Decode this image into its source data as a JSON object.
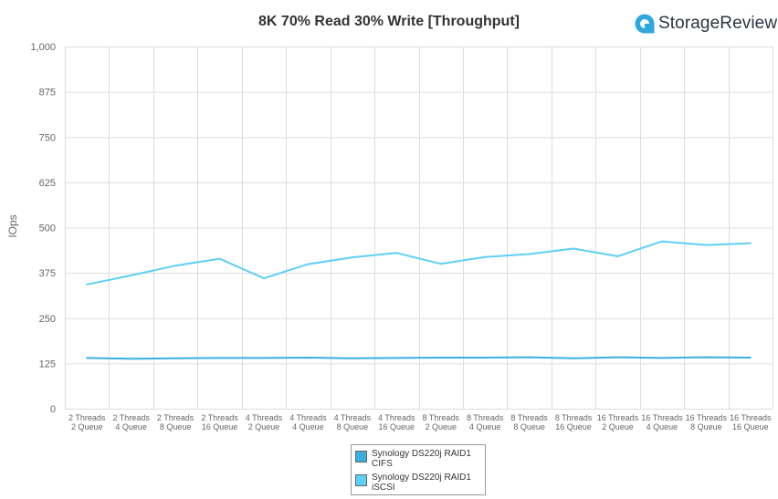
{
  "brand": {
    "name": "StorageReview",
    "accent": "#2fa8e0"
  },
  "chart_data": {
    "type": "line",
    "title": "8K 70% Read 30% Write [Throughput]",
    "ylabel": "IOps",
    "xlabel": "",
    "ylim": [
      0,
      1000
    ],
    "yticks": [
      "0",
      "125",
      "250",
      "375",
      "500",
      "625",
      "750",
      "875",
      "1,000"
    ],
    "ytick_values": [
      0,
      125,
      250,
      375,
      500,
      625,
      750,
      875,
      1000
    ],
    "grid": true,
    "legend_position": "bottom",
    "categories": [
      [
        "2 Threads",
        "2 Queue"
      ],
      [
        "2 Threads",
        "4 Queue"
      ],
      [
        "2 Threads",
        "8 Queue"
      ],
      [
        "2 Threads",
        "16 Queue"
      ],
      [
        "4 Threads",
        "2 Queue"
      ],
      [
        "4 Threads",
        "4 Queue"
      ],
      [
        "4 Threads",
        "8 Queue"
      ],
      [
        "4 Threads",
        "16 Queue"
      ],
      [
        "8 Threads",
        "2 Queue"
      ],
      [
        "8 Threads",
        "4 Queue"
      ],
      [
        "8 Threads",
        "8 Queue"
      ],
      [
        "8 Threads",
        "16 Queue"
      ],
      [
        "16 Threads",
        "2 Queue"
      ],
      [
        "16 Threads",
        "4 Queue"
      ],
      [
        "16 Threads",
        "8 Queue"
      ],
      [
        "16 Threads",
        "16 Queue"
      ]
    ],
    "series": [
      {
        "name": [
          "Synology DS220j RAID1",
          "CIFS"
        ],
        "color": "#3ab0e0",
        "values": [
          140,
          138,
          139,
          140,
          140,
          141,
          139,
          140,
          141,
          141,
          142,
          139,
          142,
          140,
          142,
          141
        ]
      },
      {
        "name": [
          "Synology DS220j RAID1",
          "iSCSI"
        ],
        "color": "#5dd0f7",
        "values": [
          343,
          368,
          395,
          414,
          360,
          399,
          418,
          430,
          400,
          419,
          427,
          442,
          421,
          462,
          452,
          457
        ]
      }
    ]
  }
}
